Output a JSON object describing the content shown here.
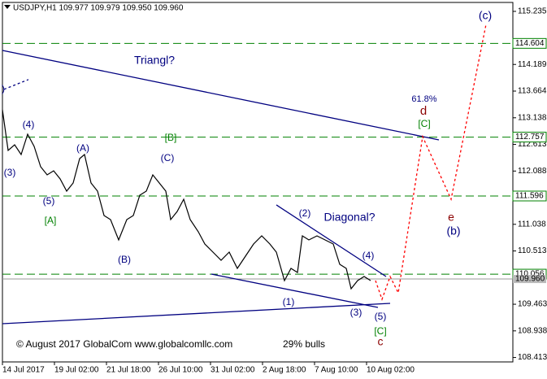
{
  "chart_data": {
    "type": "line",
    "title": "USDJPY,H1  109.977 109.979 109.950 109.960",
    "footer": "© August 2017 GlobalCom www.globalcomllc.com",
    "sentiment": "29% bulls",
    "xlim": [
      0,
      628
    ],
    "ylim": [
      108.326,
      115.411
    ],
    "xticks": [
      {
        "value": 0,
        "label": "14 Jul 2017"
      },
      {
        "value": 64,
        "label": "19 Jul 02:00"
      },
      {
        "value": 128,
        "label": "21 Jul 18:00"
      },
      {
        "value": 192,
        "label": "26 Jul 10:00"
      },
      {
        "value": 256,
        "label": "31 Jul 02:00"
      },
      {
        "value": 320,
        "label": "2 Aug 18:00"
      },
      {
        "value": 384,
        "label": "7 Aug 10:00"
      },
      {
        "value": 448,
        "label": "10 Aug 02:00"
      }
    ],
    "yticks": [
      {
        "value": 115.235,
        "label": "115.235"
      },
      {
        "value": 114.189,
        "label": "114.189"
      },
      {
        "value": 113.664,
        "label": "113.664"
      },
      {
        "value": 113.138,
        "label": "113.138"
      },
      {
        "value": 112.613,
        "label": "112.613"
      },
      {
        "value": 112.088,
        "label": "112.088"
      },
      {
        "value": 111.038,
        "label": "111.038"
      },
      {
        "value": 110.513,
        "label": "110.513"
      },
      {
        "value": 109.463,
        "label": "109.463"
      },
      {
        "value": 108.938,
        "label": "108.938"
      },
      {
        "value": 108.413,
        "label": "108.413"
      }
    ],
    "levels": [
      {
        "value": 114.604,
        "label": "114.604"
      },
      {
        "value": 112.757,
        "label": "112.757"
      },
      {
        "value": 111.596,
        "label": "111.596"
      },
      {
        "value": 110.056,
        "label": "110.056"
      }
    ],
    "level_color": "#008000",
    "current_price": {
      "value": 109.96,
      "label": "109.960"
    },
    "series": [
      {
        "color": "#000000",
        "x": [
          0,
          7,
          15,
          23,
          31,
          39,
          47,
          55,
          63,
          71,
          79,
          87,
          95,
          101,
          109,
          117,
          125,
          133,
          143,
          153,
          161,
          169,
          177,
          185,
          193,
          201,
          207,
          215,
          223,
          231,
          241,
          249,
          259,
          269,
          279,
          289,
          299,
          309,
          319,
          329,
          337,
          347,
          355,
          363,
          369,
          377,
          387,
          397,
          407,
          415,
          423,
          429,
          437,
          445,
          453
        ],
        "values": [
          113.295,
          112.494,
          112.606,
          112.414,
          112.814,
          112.574,
          112.173,
          112.013,
          112.093,
          111.933,
          111.692,
          111.853,
          112.334,
          112.414,
          111.853,
          111.692,
          111.211,
          111.131,
          110.731,
          111.131,
          111.211,
          111.612,
          111.692,
          112.013,
          111.853,
          111.692,
          111.131,
          111.291,
          111.532,
          111.131,
          110.891,
          110.65,
          110.49,
          110.33,
          110.49,
          110.17,
          110.41,
          110.65,
          110.811,
          110.65,
          110.49,
          109.929,
          110.17,
          110.089,
          110.811,
          110.731,
          110.811,
          110.731,
          110.65,
          110.25,
          110.17,
          109.769,
          109.929,
          110.009,
          109.929
        ]
      },
      {
        "color": "#ff0000",
        "dashed": true,
        "x": [
          459,
          467,
          477,
          487,
          517,
          552,
          595
        ],
        "values": [
          109.929,
          109.56,
          110.009,
          109.689,
          112.766,
          111.532,
          114.979
        ]
      }
    ],
    "trendlines": [
      {
        "x": [
          0,
          537
        ],
        "y": [
          114.466,
          112.702
        ],
        "color": "#000080"
      },
      {
        "x": [
          0,
          477
        ],
        "y": [
          109.079,
          109.48
        ],
        "color": "#000080"
      },
      {
        "x": [
          337,
          472
        ],
        "y": [
          111.42,
          110.009
        ],
        "color": "#000080"
      },
      {
        "x": [
          257,
          462
        ],
        "y": [
          110.057,
          109.4
        ],
        "color": "#000080"
      },
      {
        "x": [
          2,
          32
        ],
        "y": [
          113.699,
          113.891
        ],
        "color": "#000080",
        "dashed": true
      }
    ],
    "annotations": [
      {
        "text": "(c)",
        "color": "#000080"
      },
      {
        "text": "Triangl?",
        "color": "#000080"
      },
      {
        "text": "61.8%",
        "color": "#000080"
      },
      {
        "text": "d",
        "color": "#8b0000"
      },
      {
        "text": "[C]",
        "color": "#008000"
      },
      {
        "text": "[B]",
        "color": "#008000"
      },
      {
        "text": "(4)",
        "color": "#000080"
      },
      {
        "text": "(A)",
        "color": "#000080"
      },
      {
        "text": "(C)",
        "color": "#000080"
      },
      {
        "text": "(3)",
        "color": "#000080"
      },
      {
        "text": "(5)",
        "color": "#000080"
      },
      {
        "text": "[A]",
        "color": "#008000"
      },
      {
        "text": "(B)",
        "color": "#000080"
      },
      {
        "text": "(2)",
        "color": "#000080"
      },
      {
        "text": "Diagonal?",
        "color": "#000080"
      },
      {
        "text": "(4)",
        "color": "#000080"
      },
      {
        "text": "(1)",
        "color": "#000080"
      },
      {
        "text": "(3)",
        "color": "#000080"
      },
      {
        "text": "(5)",
        "color": "#000080"
      },
      {
        "text": "[C]",
        "color": "#008000"
      },
      {
        "text": "c",
        "color": "#8b0000"
      },
      {
        "text": "e",
        "color": "#8b0000"
      },
      {
        "text": "(b)",
        "color": "#000080"
      },
      {
        "text": ")",
        "color": "#000080"
      }
    ]
  }
}
